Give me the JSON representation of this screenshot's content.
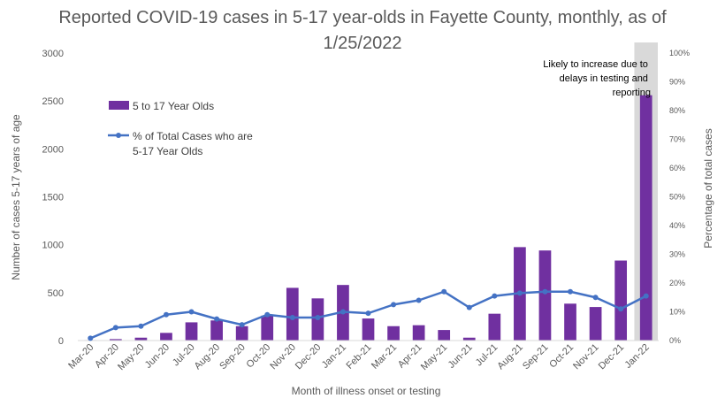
{
  "chart_data": {
    "type": "bar",
    "title": "Reported COVID-19 cases in 5-17 year-olds in Fayette County, monthly, as of 1/25/2022",
    "xlabel": "Month of illness onset or testing",
    "ylabel": "Number of cases 5-17 years of age",
    "y2label": "Percentage of total cases",
    "ylim": [
      0,
      3000
    ],
    "y2lim": [
      0,
      100
    ],
    "yticks": [
      "0",
      "500",
      "1000",
      "1500",
      "2000",
      "2500",
      "3000"
    ],
    "y2ticks": [
      "0%",
      "10%",
      "20%",
      "30%",
      "40%",
      "50%",
      "60%",
      "70%",
      "80%",
      "90%",
      "100%"
    ],
    "categories": [
      "Mar-20",
      "Apr-20",
      "May-20",
      "Jun-20",
      "Jul-20",
      "Aug-20",
      "Sep-20",
      "Oct-20",
      "Nov-20",
      "Dec-20",
      "Jan-21",
      "Feb-21",
      "Mar-21",
      "Apr-21",
      "May-21",
      "Jun-21",
      "Jul-21",
      "Aug-21",
      "Sep-21",
      "Oct-21",
      "Nov-21",
      "Dec-21",
      "Jan-22"
    ],
    "series": [
      {
        "name": "5 to 17 Year Olds",
        "type": "bar",
        "axis": "left",
        "color": "#7030a0",
        "values": [
          5,
          15,
          30,
          80,
          190,
          210,
          150,
          260,
          550,
          440,
          580,
          230,
          150,
          160,
          110,
          30,
          280,
          975,
          940,
          385,
          350,
          835,
          2560
        ]
      },
      {
        "name": "% of Total Cases who are 5-17 Year Olds",
        "type": "line",
        "axis": "right",
        "color": "#4472c4",
        "values": [
          0.8,
          4.5,
          5,
          9,
          10,
          7.5,
          5.5,
          9,
          8,
          8,
          10,
          9.5,
          12.5,
          14,
          17,
          11.5,
          15.5,
          16.5,
          17,
          17,
          15,
          11,
          15.5
        ]
      }
    ],
    "legend_position": "top-left",
    "grid": false,
    "highlight": {
      "category": "Jan-22",
      "color": "#d9d9d9"
    },
    "annotation": "Likely to increase due to delays in testing and reporting"
  }
}
